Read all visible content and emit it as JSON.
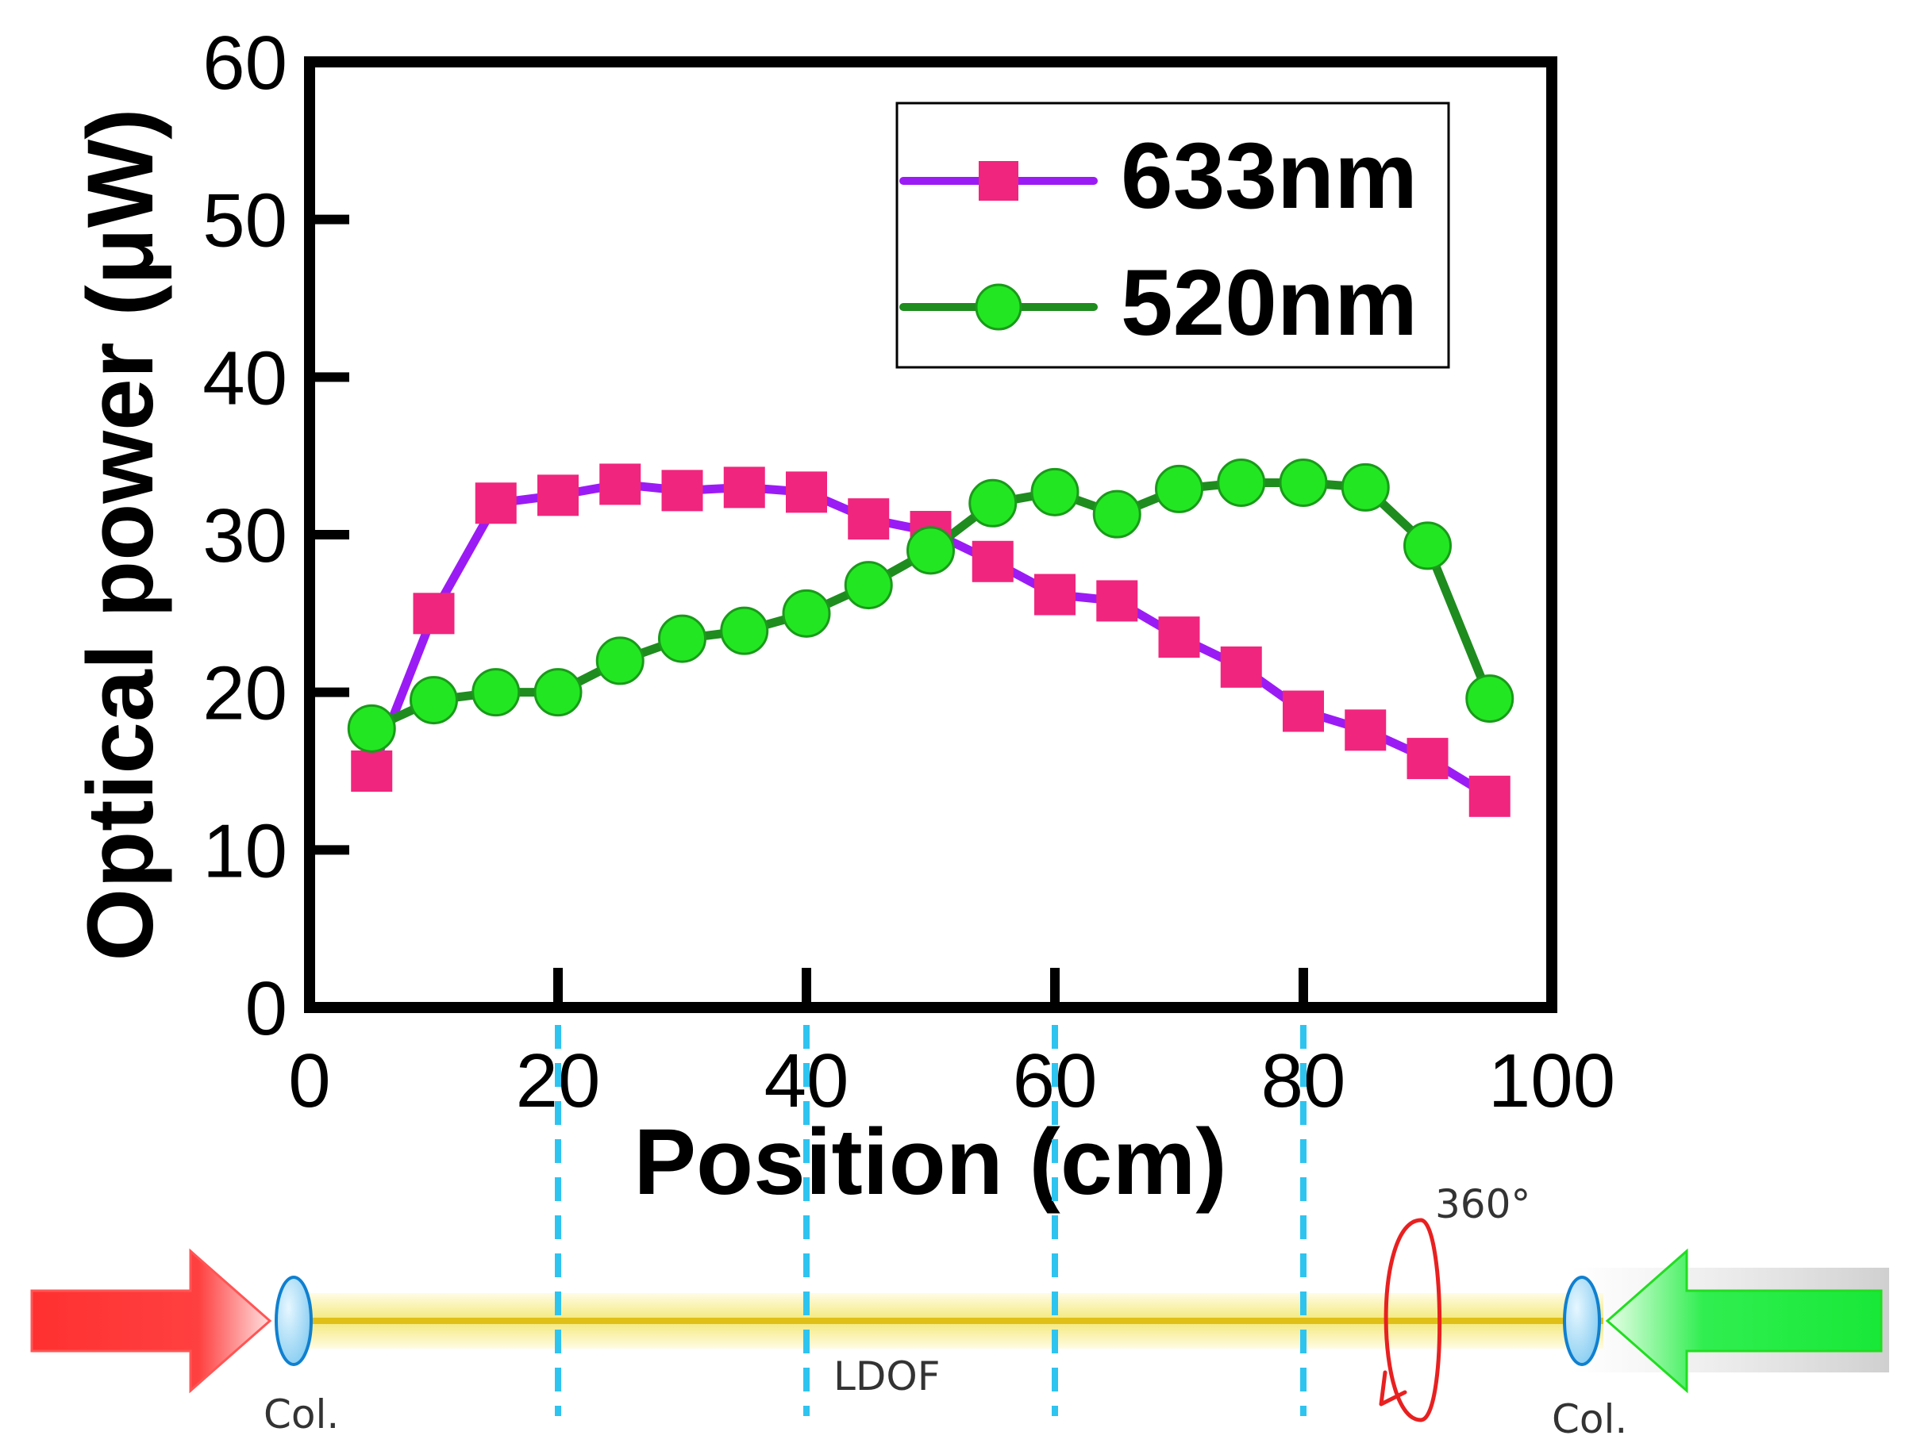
{
  "chart_data": {
    "type": "line",
    "title": "",
    "xlabel": "Position (cm)",
    "ylabel": "Optical power (μW)",
    "xlim": [
      0,
      100
    ],
    "ylim": [
      0,
      60
    ],
    "xticks": [
      0,
      20,
      40,
      60,
      80,
      100
    ],
    "yticks": [
      0,
      10,
      20,
      30,
      40,
      50,
      60
    ],
    "grid": false,
    "legend_position": "top-right",
    "x": [
      5,
      10,
      15,
      20,
      25,
      30,
      35,
      40,
      45,
      50,
      55,
      60,
      65,
      70,
      75,
      80,
      85,
      90,
      95
    ],
    "series": [
      {
        "name": "633nm",
        "line_color": "#9B1BF5",
        "marker_color": "#F0257D",
        "marker": "square",
        "values": [
          15.0,
          25.0,
          32.0,
          32.5,
          33.2,
          32.8,
          33.0,
          32.7,
          31.0,
          30.2,
          28.3,
          26.2,
          25.8,
          23.5,
          21.6,
          18.8,
          17.6,
          15.8,
          13.4
        ]
      },
      {
        "name": "520nm",
        "line_color": "#1E8C1E",
        "marker_color": "#22E622",
        "marker": "circle",
        "values": [
          17.7,
          19.5,
          20.0,
          20.0,
          22.0,
          23.4,
          23.9,
          25.0,
          26.8,
          29.0,
          32.0,
          32.7,
          31.3,
          32.9,
          33.3,
          33.3,
          33.0,
          29.3,
          19.6
        ]
      }
    ]
  },
  "diagram": {
    "rotation_label": "360°",
    "fiber_label": "LDOF",
    "collimator_left_label": "Col.",
    "collimator_right_label": "Col.",
    "marker_positions_cm": [
      20,
      40,
      60,
      80
    ]
  }
}
